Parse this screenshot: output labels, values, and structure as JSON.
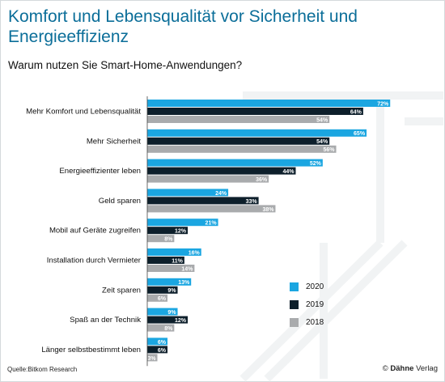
{
  "title": "Komfort und Lebensqualität vor Sicherheit und Energieeffizienz",
  "subtitle": "Warum nutzen Sie Smart-Home-Anwendungen?",
  "source": "Quelle:Bitkom Research",
  "brand": {
    "symbol": "©",
    "name": "Dähne",
    "suffix": "Verlag"
  },
  "colors": {
    "2020": "#1ba6e1",
    "2019": "#0d1f2b",
    "2018": "#a9abad"
  },
  "chart_data": {
    "type": "bar",
    "orientation": "horizontal",
    "categories": [
      "Mehr Komfort und Lebensqualität",
      "Mehr Sicherheit",
      "Energieeffizienter leben",
      "Geld sparen",
      "Mobil auf Geräte zugreifen",
      "Installation durch Vermieter",
      "Zeit sparen",
      "Spaß an der Technik",
      "Länger selbstbestimmt leben"
    ],
    "series": [
      {
        "name": "2020",
        "values": [
          72,
          65,
          52,
          24,
          21,
          16,
          13,
          9,
          6
        ]
      },
      {
        "name": "2019",
        "values": [
          64,
          54,
          44,
          33,
          12,
          11,
          9,
          12,
          6
        ]
      },
      {
        "name": "2018",
        "values": [
          54,
          56,
          36,
          38,
          8,
          14,
          6,
          8,
          3
        ]
      }
    ],
    "unit": "%",
    "legend_position": "bottom-right"
  }
}
